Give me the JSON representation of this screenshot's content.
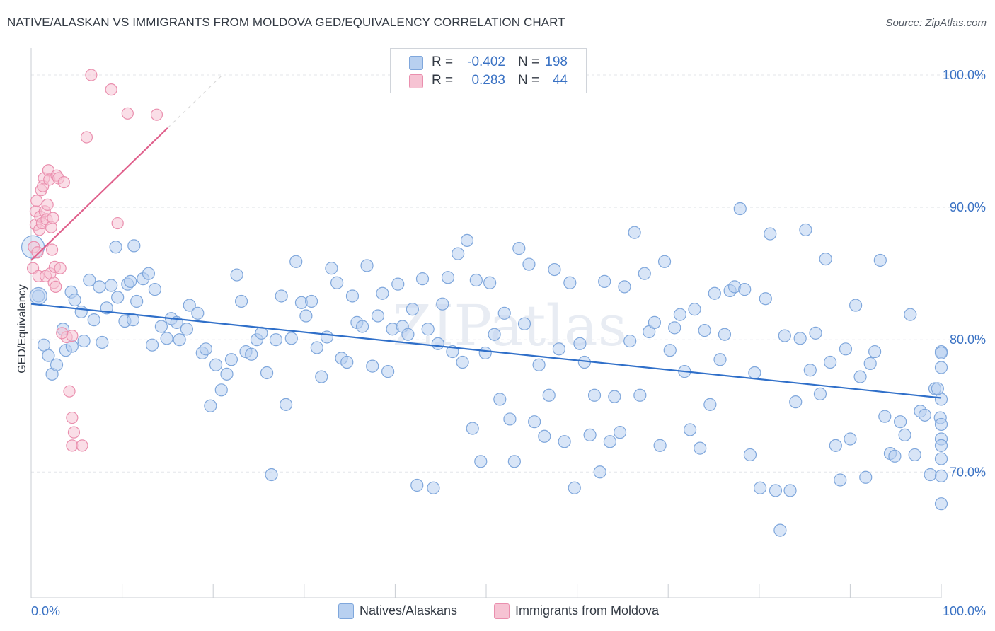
{
  "title": "NATIVE/ALASKAN VS IMMIGRANTS FROM MOLDOVA GED/EQUIVALENCY CORRELATION CHART",
  "source": "Source: ZipAtlas.com",
  "watermark": "ZIPatlas",
  "legend": {
    "r_label": "R =",
    "n_label": "N =",
    "rows": [
      {
        "r": "-0.402",
        "n": "198"
      },
      {
        "r": "0.283",
        "n": "44"
      }
    ]
  },
  "colors": {
    "blue_fill": "#b8d0f0",
    "blue_stroke": "#7fa7dc",
    "blue_line": "#2f6fc9",
    "pink_fill": "#f6c3d3",
    "pink_stroke": "#ea8fae",
    "pink_line": "#e0608c",
    "axis_text": "#3a72c4",
    "grid": "#e3e6ea"
  },
  "chart_data": {
    "type": "scatter",
    "title": "NATIVE/ALASKAN VS IMMIGRANTS FROM MOLDOVA GED/EQUIVALENCY CORRELATION CHART",
    "xlabel": "",
    "ylabel": "GED/Equivalency",
    "xlim": [
      0,
      100
    ],
    "ylim": [
      60.5,
      101.5
    ],
    "x_tick_labels": [
      "0.0%",
      "100.0%"
    ],
    "y_ticks": [
      70,
      80,
      90,
      100
    ],
    "y_tick_labels": [
      "70.0%",
      "80.0%",
      "90.0%",
      "100.0%"
    ],
    "grid": true,
    "legend_position": "top-center",
    "series": [
      {
        "name": "Natives/Alaskans",
        "r": -0.402,
        "n": 198,
        "trend": {
          "x": [
            0,
            100
          ],
          "y": [
            82.7,
            75.6
          ]
        },
        "points": [
          [
            0.8,
            83.3
          ],
          [
            1.4,
            79.6
          ],
          [
            1.9,
            78.8
          ],
          [
            2.3,
            77.4
          ],
          [
            2.8,
            78.1
          ],
          [
            3.5,
            80.8
          ],
          [
            3.8,
            79.2
          ],
          [
            4.4,
            83.6
          ],
          [
            4.8,
            83.0
          ],
          [
            5.5,
            82.1
          ],
          [
            5.8,
            79.9
          ],
          [
            6.4,
            84.5
          ],
          [
            6.9,
            81.5
          ],
          [
            7.5,
            84.0
          ],
          [
            7.8,
            79.8
          ],
          [
            8.3,
            82.4
          ],
          [
            8.8,
            84.1
          ],
          [
            9.5,
            83.2
          ],
          [
            10.3,
            81.4
          ],
          [
            10.6,
            84.2
          ],
          [
            10.9,
            84.4
          ],
          [
            11.2,
            81.5
          ],
          [
            11.6,
            82.9
          ],
          [
            12.3,
            84.6
          ],
          [
            12.9,
            85.0
          ],
          [
            13.3,
            79.6
          ],
          [
            13.6,
            83.8
          ],
          [
            14.3,
            81.0
          ],
          [
            14.9,
            80.1
          ],
          [
            15.4,
            81.6
          ],
          [
            16.0,
            81.3
          ],
          [
            16.3,
            80.0
          ],
          [
            17.1,
            80.8
          ],
          [
            17.4,
            82.6
          ],
          [
            18.3,
            82.0
          ],
          [
            18.8,
            79.0
          ],
          [
            19.2,
            79.3
          ],
          [
            19.7,
            75.0
          ],
          [
            20.3,
            78.1
          ],
          [
            20.9,
            76.2
          ],
          [
            21.5,
            77.4
          ],
          [
            22.0,
            78.5
          ],
          [
            22.6,
            84.9
          ],
          [
            23.1,
            82.9
          ],
          [
            23.6,
            79.1
          ],
          [
            24.2,
            78.9
          ],
          [
            24.8,
            80.0
          ],
          [
            25.3,
            80.5
          ],
          [
            25.9,
            77.5
          ],
          [
            26.4,
            69.8
          ],
          [
            26.9,
            80.0
          ],
          [
            27.5,
            83.3
          ],
          [
            28.0,
            75.1
          ],
          [
            28.6,
            80.1
          ],
          [
            29.1,
            85.9
          ],
          [
            29.7,
            82.8
          ],
          [
            30.2,
            81.8
          ],
          [
            30.8,
            82.9
          ],
          [
            31.4,
            79.4
          ],
          [
            31.9,
            77.2
          ],
          [
            32.5,
            80.2
          ],
          [
            33.0,
            85.4
          ],
          [
            33.6,
            84.3
          ],
          [
            34.1,
            78.6
          ],
          [
            34.7,
            78.3
          ],
          [
            35.3,
            83.3
          ],
          [
            35.8,
            81.3
          ],
          [
            36.4,
            81.0
          ],
          [
            36.9,
            85.6
          ],
          [
            37.5,
            78.0
          ],
          [
            38.1,
            81.8
          ],
          [
            38.6,
            83.5
          ],
          [
            39.2,
            77.6
          ],
          [
            39.7,
            80.8
          ],
          [
            40.3,
            84.2
          ],
          [
            40.8,
            81.0
          ],
          [
            41.4,
            80.4
          ],
          [
            41.9,
            82.3
          ],
          [
            42.4,
            69.0
          ],
          [
            43.0,
            84.6
          ],
          [
            43.6,
            80.8
          ],
          [
            44.2,
            68.8
          ],
          [
            44.7,
            79.7
          ],
          [
            45.2,
            82.7
          ],
          [
            45.8,
            84.7
          ],
          [
            46.3,
            79.1
          ],
          [
            46.9,
            86.5
          ],
          [
            47.4,
            78.3
          ],
          [
            47.9,
            87.5
          ],
          [
            48.5,
            73.3
          ],
          [
            48.9,
            84.5
          ],
          [
            49.4,
            70.8
          ],
          [
            49.9,
            79.0
          ],
          [
            50.4,
            84.3
          ],
          [
            50.9,
            80.4
          ],
          [
            51.5,
            75.5
          ],
          [
            52.0,
            82.0
          ],
          [
            52.6,
            74.0
          ],
          [
            53.1,
            70.8
          ],
          [
            53.6,
            86.9
          ],
          [
            54.2,
            81.2
          ],
          [
            54.7,
            85.7
          ],
          [
            55.3,
            73.8
          ],
          [
            55.8,
            78.1
          ],
          [
            56.4,
            72.7
          ],
          [
            56.9,
            75.8
          ],
          [
            57.5,
            85.3
          ],
          [
            58.0,
            79.3
          ],
          [
            58.6,
            72.3
          ],
          [
            59.2,
            84.3
          ],
          [
            59.7,
            68.8
          ],
          [
            60.3,
            79.7
          ],
          [
            60.8,
            78.3
          ],
          [
            61.4,
            72.8
          ],
          [
            61.9,
            75.8
          ],
          [
            62.5,
            70.0
          ],
          [
            63.0,
            84.4
          ],
          [
            63.6,
            72.3
          ],
          [
            64.1,
            75.7
          ],
          [
            64.7,
            73.0
          ],
          [
            65.2,
            84.0
          ],
          [
            65.8,
            79.9
          ],
          [
            66.3,
            88.1
          ],
          [
            66.9,
            75.8
          ],
          [
            67.4,
            85.0
          ],
          [
            67.9,
            80.6
          ],
          [
            68.5,
            81.3
          ],
          [
            69.1,
            72.0
          ],
          [
            69.6,
            85.9
          ],
          [
            70.2,
            79.2
          ],
          [
            70.7,
            80.9
          ],
          [
            71.3,
            81.9
          ],
          [
            71.8,
            77.6
          ],
          [
            72.4,
            73.2
          ],
          [
            72.9,
            82.3
          ],
          [
            73.5,
            71.8
          ],
          [
            74.0,
            80.7
          ],
          [
            74.6,
            75.1
          ],
          [
            75.1,
            83.5
          ],
          [
            75.7,
            78.5
          ],
          [
            76.2,
            80.4
          ],
          [
            76.8,
            83.7
          ],
          [
            77.3,
            84.0
          ],
          [
            77.9,
            89.9
          ],
          [
            78.4,
            83.8
          ],
          [
            79.0,
            71.3
          ],
          [
            79.5,
            77.5
          ],
          [
            80.1,
            68.8
          ],
          [
            80.7,
            83.1
          ],
          [
            81.2,
            88.0
          ],
          [
            81.8,
            68.6
          ],
          [
            82.3,
            65.6
          ],
          [
            82.8,
            80.3
          ],
          [
            83.4,
            68.6
          ],
          [
            84.0,
            75.3
          ],
          [
            84.5,
            80.1
          ],
          [
            85.1,
            88.3
          ],
          [
            85.6,
            77.7
          ],
          [
            86.2,
            80.5
          ],
          [
            86.7,
            75.9
          ],
          [
            87.3,
            86.1
          ],
          [
            87.8,
            78.3
          ],
          [
            88.4,
            72.0
          ],
          [
            88.9,
            69.4
          ],
          [
            89.5,
            79.3
          ],
          [
            90.0,
            72.5
          ],
          [
            90.6,
            82.6
          ],
          [
            91.1,
            77.2
          ],
          [
            91.7,
            69.6
          ],
          [
            92.2,
            78.2
          ],
          [
            92.7,
            79.1
          ],
          [
            93.3,
            86.0
          ],
          [
            93.8,
            74.2
          ],
          [
            94.4,
            71.4
          ],
          [
            94.9,
            71.2
          ],
          [
            95.5,
            73.8
          ],
          [
            96.0,
            72.8
          ],
          [
            96.6,
            81.9
          ],
          [
            97.1,
            71.3
          ],
          [
            97.7,
            74.6
          ],
          [
            98.2,
            74.3
          ],
          [
            98.8,
            69.8
          ],
          [
            99.3,
            76.3
          ],
          [
            99.9,
            74.1
          ],
          [
            100.4,
            79.1
          ],
          [
            100.9,
            77.9
          ],
          [
            101.5,
            75.5
          ],
          [
            102.0,
            73.6
          ],
          [
            102.5,
            72.5
          ],
          [
            103.1,
            69.7
          ],
          [
            103.6,
            71.0
          ],
          [
            104.2,
            67.6
          ],
          [
            104.7,
            72.0
          ],
          [
            100.6,
            79.0
          ],
          [
            99.6,
            76.3
          ],
          [
            11.3,
            87.1
          ],
          [
            9.3,
            87.0
          ],
          [
            4.5,
            79.5
          ]
        ]
      },
      {
        "name": "Immigrants from Moldova",
        "r": 0.283,
        "n": 44,
        "trend": {
          "x": [
            0,
            15
          ],
          "y": [
            86.0,
            96.0
          ]
        },
        "trend_dashed": {
          "x": [
            15,
            21
          ],
          "y": [
            96.0,
            100.0
          ]
        },
        "points": [
          [
            0.2,
            85.4
          ],
          [
            0.3,
            87.0
          ],
          [
            0.5,
            88.7
          ],
          [
            0.5,
            89.7
          ],
          [
            0.6,
            90.5
          ],
          [
            0.7,
            86.6
          ],
          [
            0.8,
            84.8
          ],
          [
            0.9,
            88.3
          ],
          [
            1.0,
            89.3
          ],
          [
            1.1,
            91.3
          ],
          [
            1.2,
            88.8
          ],
          [
            1.3,
            91.6
          ],
          [
            1.4,
            92.2
          ],
          [
            1.5,
            89.7
          ],
          [
            1.6,
            84.8
          ],
          [
            1.7,
            89.1
          ],
          [
            1.8,
            90.2
          ],
          [
            1.9,
            92.8
          ],
          [
            2.0,
            92.1
          ],
          [
            2.1,
            85.0
          ],
          [
            2.2,
            88.5
          ],
          [
            2.3,
            86.8
          ],
          [
            2.4,
            89.2
          ],
          [
            2.5,
            84.3
          ],
          [
            2.6,
            85.5
          ],
          [
            2.7,
            84.0
          ],
          [
            2.8,
            92.4
          ],
          [
            3.0,
            92.2
          ],
          [
            3.2,
            85.4
          ],
          [
            3.6,
            91.9
          ],
          [
            3.9,
            80.2
          ],
          [
            4.5,
            80.3
          ],
          [
            4.2,
            76.1
          ],
          [
            4.5,
            74.1
          ],
          [
            4.7,
            73.0
          ],
          [
            4.5,
            72.0
          ],
          [
            5.6,
            72.0
          ],
          [
            6.1,
            95.3
          ],
          [
            6.6,
            100.0
          ],
          [
            8.8,
            98.9
          ],
          [
            10.6,
            97.1
          ],
          [
            13.8,
            97.0
          ],
          [
            9.5,
            88.8
          ],
          [
            3.4,
            80.5
          ]
        ]
      }
    ]
  },
  "bottom_legend": [
    {
      "label": "Natives/Alaskans"
    },
    {
      "label": "Immigrants from Moldova"
    }
  ]
}
